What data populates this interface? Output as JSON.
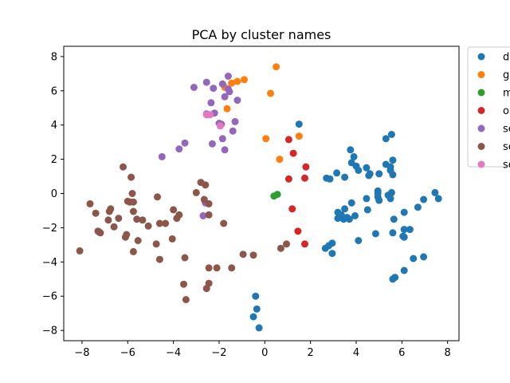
{
  "chart_data": {
    "type": "scatter",
    "title": "PCA by cluster names",
    "xlabel": "",
    "ylabel": "",
    "xlim": [
      -8.8,
      8.5
    ],
    "ylim": [
      -8.6,
      8.6
    ],
    "xticks": [
      -8,
      -6,
      -4,
      -2,
      0,
      2,
      4,
      6,
      8
    ],
    "xtick_labels": [
      "−8",
      "−6",
      "−4",
      "−2",
      "0",
      "2",
      "4",
      "6",
      "8"
    ],
    "yticks": [
      -8,
      -6,
      -4,
      -2,
      0,
      2,
      4,
      6,
      8
    ],
    "ytick_labels": [
      "−8",
      "−6",
      "−4",
      "−2",
      "0",
      "2",
      "4",
      "6",
      "8"
    ],
    "grid": false,
    "legend_position": "outside top-right",
    "series": [
      {
        "name": "d",
        "color": "#1f77b4",
        "points": [
          [
            1.5,
            4.05
          ],
          [
            3.75,
            2.55
          ],
          [
            3.9,
            2.15
          ],
          [
            3.8,
            1.8
          ],
          [
            4.0,
            1.6
          ],
          [
            4.1,
            1.35
          ],
          [
            4.45,
            1.5
          ],
          [
            4.6,
            1.15
          ],
          [
            4.55,
            1.05
          ],
          [
            5.0,
            1.15
          ],
          [
            5.3,
            1.7
          ],
          [
            5.5,
            1.55
          ],
          [
            5.5,
            1.35
          ],
          [
            5.6,
            1.1
          ],
          [
            5.6,
            1.95
          ],
          [
            5.3,
            3.2
          ],
          [
            5.55,
            3.45
          ],
          [
            3.5,
            0.95
          ],
          [
            3.15,
            1.2
          ],
          [
            2.7,
            0.9
          ],
          [
            2.85,
            0.85
          ],
          [
            3.8,
            -0.55
          ],
          [
            4.45,
            -0.3
          ],
          [
            4.95,
            -0.2
          ],
          [
            5.4,
            -0.1
          ],
          [
            5.55,
            0.05
          ],
          [
            4.95,
            0.15
          ],
          [
            5.0,
            -0.4
          ],
          [
            5.5,
            -0.3
          ],
          [
            4.95,
            0.0
          ],
          [
            3.5,
            -0.9
          ],
          [
            3.2,
            -1.1
          ],
          [
            3.3,
            -1.3
          ],
          [
            3.45,
            -1.5
          ],
          [
            3.6,
            -1.4
          ],
          [
            3.7,
            -1.5
          ],
          [
            3.2,
            -1.45
          ],
          [
            3.35,
            -1.25
          ],
          [
            4.5,
            -0.95
          ],
          [
            3.95,
            -1.3
          ],
          [
            5.65,
            -1.5
          ],
          [
            6.1,
            -1.1
          ],
          [
            6.7,
            -0.8
          ],
          [
            6.95,
            -0.35
          ],
          [
            7.45,
            0.05
          ],
          [
            7.6,
            -0.3
          ],
          [
            6.1,
            -2.1
          ],
          [
            6.35,
            -2.1
          ],
          [
            5.6,
            -2.3
          ],
          [
            6.05,
            -2.5
          ],
          [
            6.1,
            -2.55
          ],
          [
            4.85,
            -2.35
          ],
          [
            4.1,
            -2.75
          ],
          [
            2.95,
            -2.9
          ],
          [
            2.8,
            -3.05
          ],
          [
            2.65,
            -3.2
          ],
          [
            2.95,
            -3.5
          ],
          [
            6.5,
            -3.8
          ],
          [
            6.95,
            -3.7
          ],
          [
            6.1,
            -4.5
          ],
          [
            5.7,
            -4.9
          ],
          [
            5.6,
            -5.0
          ],
          [
            -0.4,
            -6.0
          ],
          [
            -0.35,
            -6.75
          ],
          [
            -0.5,
            -7.2
          ],
          [
            -0.25,
            -7.85
          ]
        ]
      },
      {
        "name": "g",
        "color": "#ff7f0e",
        "points": [
          [
            0.5,
            7.4
          ],
          [
            -1.2,
            6.55
          ],
          [
            -1.45,
            6.45
          ],
          [
            -1.75,
            6.2
          ],
          [
            -0.9,
            6.65
          ],
          [
            0.25,
            5.85
          ],
          [
            -1.65,
            4.95
          ],
          [
            0.05,
            3.2
          ],
          [
            1.5,
            3.35
          ],
          [
            0.65,
            2.0
          ]
        ]
      },
      {
        "name": "m",
        "color": "#2ca02c",
        "points": [
          [
            0.4,
            -0.15
          ],
          [
            0.55,
            -0.05
          ]
        ]
      },
      {
        "name": "o",
        "color": "#d62728",
        "points": [
          [
            1.05,
            3.15
          ],
          [
            1.25,
            2.35
          ],
          [
            1.8,
            1.55
          ],
          [
            1.05,
            0.85
          ],
          [
            1.75,
            0.9
          ],
          [
            1.2,
            -0.9
          ],
          [
            1.45,
            -2.2
          ],
          [
            1.75,
            -2.95
          ]
        ]
      },
      {
        "name": "se",
        "color": "#9467bd",
        "points": [
          [
            -1.6,
            6.85
          ],
          [
            -1.85,
            6.4
          ],
          [
            -2.25,
            6.15
          ],
          [
            -2.55,
            6.5
          ],
          [
            -1.6,
            6.1
          ],
          [
            -1.55,
            5.95
          ],
          [
            -1.75,
            5.65
          ],
          [
            -1.2,
            5.45
          ],
          [
            -3.1,
            6.2
          ],
          [
            -2.35,
            5.3
          ],
          [
            -2.2,
            4.7
          ],
          [
            -2.55,
            4.65
          ],
          [
            -2.0,
            4.1
          ],
          [
            -1.9,
            4.05
          ],
          [
            -1.3,
            4.2
          ],
          [
            -1.4,
            3.65
          ],
          [
            -1.85,
            3.2
          ],
          [
            -2.3,
            2.9
          ],
          [
            -1.75,
            2.55
          ],
          [
            -3.5,
            2.95
          ],
          [
            -3.75,
            2.6
          ],
          [
            -4.5,
            2.15
          ],
          [
            -2.7,
            -1.3
          ],
          [
            -2.6,
            -0.55
          ]
        ]
      },
      {
        "name": "se",
        "color": "#8c564b",
        "points": [
          [
            -6.2,
            1.55
          ],
          [
            -5.85,
            0.95
          ],
          [
            -5.8,
            0.0
          ],
          [
            -5.9,
            -0.5
          ],
          [
            -6.0,
            -0.45
          ],
          [
            -5.75,
            -0.5
          ],
          [
            -4.7,
            -0.2
          ],
          [
            -3.0,
            0.05
          ],
          [
            -2.8,
            0.65
          ],
          [
            -2.6,
            0.5
          ],
          [
            -2.65,
            -0.35
          ],
          [
            -2.45,
            -0.6
          ],
          [
            -7.65,
            -0.6
          ],
          [
            -7.4,
            -1.15
          ],
          [
            -6.75,
            -0.9
          ],
          [
            -6.8,
            -1.05
          ],
          [
            -6.85,
            -1.55
          ],
          [
            -6.4,
            -1.45
          ],
          [
            -5.75,
            -1.05
          ],
          [
            -5.6,
            -1.5
          ],
          [
            -5.35,
            -1.55
          ],
          [
            -5.1,
            -1.9
          ],
          [
            -4.6,
            -1.75
          ],
          [
            -4.35,
            -1.75
          ],
          [
            -4.0,
            -0.95
          ],
          [
            -3.75,
            -1.25
          ],
          [
            -3.85,
            -1.45
          ],
          [
            -2.45,
            -1.25
          ],
          [
            -1.8,
            -1.75
          ],
          [
            -6.6,
            -1.95
          ],
          [
            -7.25,
            -2.25
          ],
          [
            -7.3,
            -2.2
          ],
          [
            -7.2,
            -2.3
          ],
          [
            -6.05,
            -2.4
          ],
          [
            -6.1,
            -2.55
          ],
          [
            -5.55,
            -2.75
          ],
          [
            -4.05,
            -2.65
          ],
          [
            -4.75,
            -2.95
          ],
          [
            -5.75,
            -3.4
          ],
          [
            -8.1,
            -3.35
          ],
          [
            -4.6,
            -3.85
          ],
          [
            -3.5,
            -3.75
          ],
          [
            -2.45,
            -4.35
          ],
          [
            -2.1,
            -4.35
          ],
          [
            -1.45,
            -4.35
          ],
          [
            -0.95,
            -3.55
          ],
          [
            -0.5,
            -3.6
          ],
          [
            -3.55,
            -5.3
          ],
          [
            -2.45,
            -5.25
          ],
          [
            -2.55,
            -5.55
          ],
          [
            -3.45,
            -6.2
          ],
          [
            0.95,
            -2.95
          ],
          [
            0.7,
            -3.2
          ]
        ]
      },
      {
        "name": "se",
        "color": "#e377c2",
        "points": [
          [
            -2.55,
            4.6
          ],
          [
            -2.4,
            4.6
          ],
          [
            -1.95,
            3.95
          ]
        ]
      }
    ]
  }
}
